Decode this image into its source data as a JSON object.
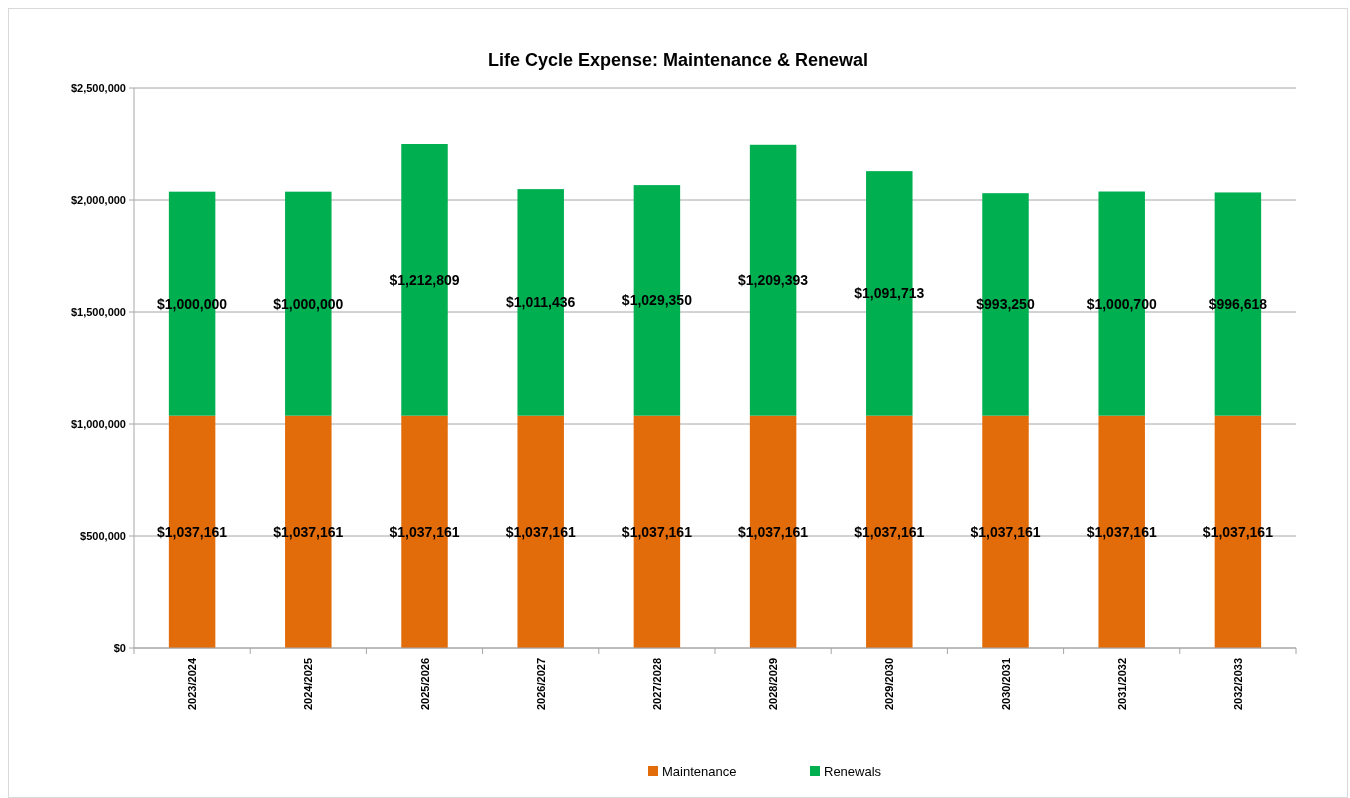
{
  "chart_data": {
    "type": "bar",
    "title": "Life Cycle Expense:  Maintenance & Renewal",
    "stacked": true,
    "grid": "y",
    "legend": "bottom",
    "categories": [
      "2023/2024",
      "2024/2025",
      "2025/2026",
      "2026/2027",
      "2027/2028",
      "2028/2029",
      "2029/2030",
      "2030/2031",
      "2031/2032",
      "2032/2033"
    ],
    "series": [
      {
        "name": "Maintenance",
        "color": "#e36c0a",
        "values": [
          1037161,
          1037161,
          1037161,
          1037161,
          1037161,
          1037161,
          1037161,
          1037161,
          1037161,
          1037161
        ],
        "value_labels": [
          "$1,037,161",
          "$1,037,161",
          "$1,037,161",
          "$1,037,161",
          "$1,037,161",
          "$1,037,161",
          "$1,037,161",
          "$1,037,161",
          "$1,037,161",
          "$1,037,161"
        ]
      },
      {
        "name": "Renewals",
        "color": "#00b050",
        "values": [
          1000000,
          1000000,
          1212809,
          1011436,
          1029350,
          1209393,
          1091713,
          993250,
          1000700,
          996618
        ],
        "value_labels": [
          "$1,000,000",
          "$1,000,000",
          "$1,212,809",
          "$1,011,436",
          "$1,029,350",
          "$1,209,393",
          "$1,091,713",
          "$993,250",
          "$1,000,700",
          "$996,618"
        ]
      }
    ],
    "ylim": [
      0,
      2500000
    ],
    "yticks": [
      {
        "value": 0,
        "label": "$0"
      },
      {
        "value": 500000,
        "label": "$500,000"
      },
      {
        "value": 1000000,
        "label": "$1,000,000"
      },
      {
        "value": 1500000,
        "label": "$1,500,000"
      },
      {
        "value": 2000000,
        "label": "$2,000,000"
      },
      {
        "value": 2500000,
        "label": "$2,500,000"
      }
    ]
  }
}
